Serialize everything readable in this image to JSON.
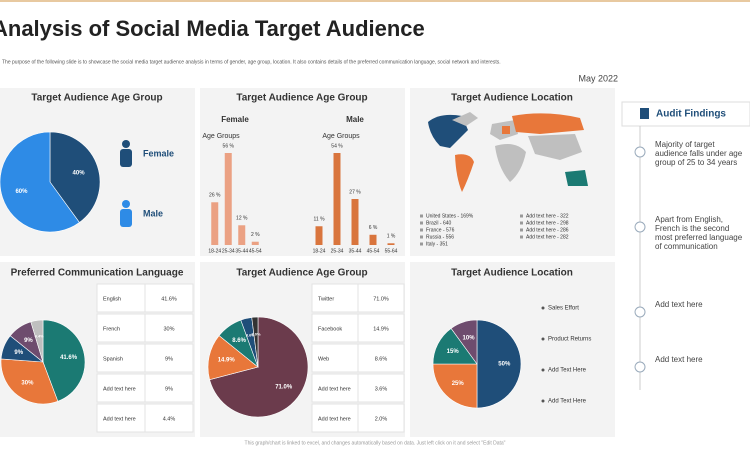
{
  "header": {
    "title": "Analysis of Social Media Target Audience",
    "subtitle": "The purpose of the following slide is to showcase the social media target audience analysis in terms of gender, age group, location. It also contains details of the preferred communication language, social network and interests.",
    "date": "May 2022"
  },
  "panels": [
    "Target Audience Age Group",
    "Target Audience Age Group",
    "Target Audience Location",
    "Preferred Communication Language",
    "Target Audience Age Group",
    "Target Audience Location"
  ],
  "location_legend": [
    "United States - 169%",
    "Brazil - 640",
    "France - 576",
    "Russia - 556",
    "Italy - 351",
    "Add text here - 322",
    "Add text here - 298",
    "Add text here - 286",
    "Add text here - 282"
  ],
  "chart_data": [
    {
      "type": "pie",
      "categories": [
        "Female",
        "Male"
      ],
      "values": [
        40,
        60
      ],
      "value_labels": [
        "40%",
        "60%"
      ],
      "colors": [
        "#1f4e79",
        "#2e8be6"
      ]
    },
    {
      "type": "bar",
      "title": "Female",
      "subtitle": "Age Groups",
      "categories": [
        "18-24",
        "25-34",
        "35-44",
        "45-54"
      ],
      "values": [
        26,
        56,
        12,
        2
      ],
      "value_labels": [
        "26 %",
        "56 %",
        "12 %",
        "2 %"
      ],
      "color": "#eba183"
    },
    {
      "type": "bar",
      "title": "Male",
      "subtitle": "Age Groups",
      "categories": [
        "18-24",
        "25-34",
        "35-44",
        "45-54",
        "55-64"
      ],
      "values": [
        11,
        54,
        27,
        6,
        1
      ],
      "value_labels": [
        "11 %",
        "54 %",
        "27 %",
        "6 %",
        "1 %"
      ],
      "color": "#d9753d"
    },
    {
      "type": "pie",
      "categories": [
        "English",
        "French",
        "Spanish",
        "Add text here",
        "Add text here"
      ],
      "values": [
        41.6,
        30,
        9,
        9,
        4.4
      ],
      "value_labels": [
        "41.6%",
        "30%",
        "9%",
        "9%",
        "4.4%"
      ],
      "colors": [
        "#1b7a73",
        "#e8773a",
        "#1f4e79",
        "#6e4c6e",
        "#bfbfbf"
      ]
    },
    {
      "type": "pie",
      "categories": [
        "Twitter",
        "Facebook",
        "Web",
        "Add text here",
        "Add text here"
      ],
      "values": [
        71,
        14.9,
        8.6,
        3.6,
        2
      ],
      "value_labels": [
        "71.0%",
        "14.9%",
        "8.6%",
        "3.6%",
        "2.0%"
      ],
      "colors": [
        "#6b3b4c",
        "#e8773a",
        "#1b7a73",
        "#1f4e79",
        "#333333"
      ]
    },
    {
      "type": "pie",
      "categories": [
        "Sales Effort",
        "Product Returns",
        "Add Text Here",
        "Add Text Here"
      ],
      "values": [
        50,
        25,
        15,
        10
      ],
      "value_labels": [
        "50%",
        "25%",
        "15%",
        "10%"
      ],
      "colors": [
        "#1f4e79",
        "#e8773a",
        "#1b7a73",
        "#6e4c6e"
      ]
    }
  ],
  "audit": {
    "title": "Audit Findings",
    "items": [
      "Majority of target audience falls under age group of 25 to 34 years",
      "Apart from English, French is the second most preferred language of communication",
      "Add text here",
      "Add text here"
    ]
  },
  "footer": "This graph/chart is linked to excel, and changes automatically based on data. Just left click on it and select \"Edit Data\""
}
